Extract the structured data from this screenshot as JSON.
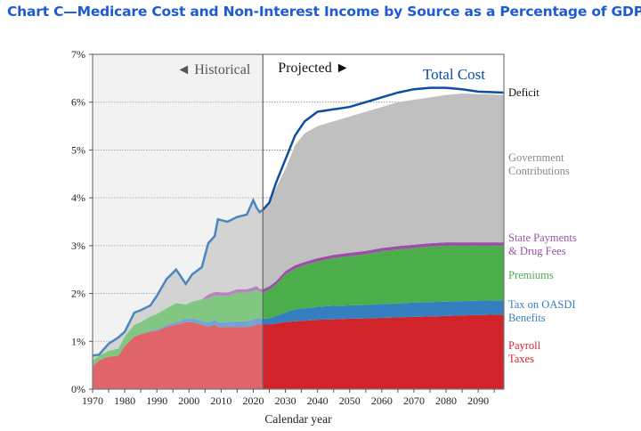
{
  "title": "Chart C—Medicare Cost and Non-Interest Income by Source as a Percentage of GDP",
  "chart_data": {
    "type": "area",
    "title": "Chart C—Medicare Cost and Non-Interest Income by Source as a Percentage of GDP",
    "xlabel": "Calendar year",
    "ylabel": "",
    "xlim": [
      1970,
      2098
    ],
    "ylim": [
      0,
      7
    ],
    "x_ticks": [
      "1970",
      "1980",
      "1990",
      "2000",
      "2010",
      "2020",
      "2030",
      "2040",
      "2050",
      "2060",
      "2070",
      "2080",
      "2090"
    ],
    "y_ticks": [
      "0%",
      "1%",
      "2%",
      "3%",
      "4%",
      "5%",
      "6%",
      "7%"
    ],
    "grid": "horizontal dotted",
    "historical_label": "◄ Historical",
    "projected_label": "Projected ►",
    "projection_start_year": 2023,
    "x": [
      1970,
      1972,
      1975,
      1978,
      1980,
      1983,
      1985,
      1988,
      1990,
      1993,
      1996,
      1999,
      2001,
      2004,
      2006,
      2008,
      2009,
      2012,
      2015,
      2018,
      2020,
      2021,
      2022,
      2023,
      2025,
      2027,
      2030,
      2033,
      2036,
      2040,
      2045,
      2050,
      2055,
      2060,
      2065,
      2070,
      2075,
      2080,
      2085,
      2090,
      2098
    ],
    "stacked_series": [
      {
        "name": "Payroll Taxes",
        "label": "Payroll\nTaxes",
        "color": "#d1232a",
        "values": [
          0.48,
          0.6,
          0.68,
          0.7,
          0.9,
          1.1,
          1.15,
          1.2,
          1.22,
          1.3,
          1.35,
          1.4,
          1.4,
          1.35,
          1.3,
          1.35,
          1.3,
          1.3,
          1.3,
          1.3,
          1.32,
          1.35,
          1.35,
          1.35,
          1.35,
          1.37,
          1.4,
          1.42,
          1.43,
          1.45,
          1.46,
          1.47,
          1.48,
          1.49,
          1.5,
          1.51,
          1.52,
          1.53,
          1.54,
          1.55,
          1.56
        ]
      },
      {
        "name": "Tax on OASDI Benefits",
        "label": "Tax on OASDI\nBenefits",
        "color": "#357fc0",
        "values": [
          0,
          0,
          0,
          0,
          0,
          0,
          0,
          0.02,
          0.03,
          0.04,
          0.05,
          0.07,
          0.08,
          0.08,
          0.1,
          0.1,
          0.1,
          0.1,
          0.12,
          0.12,
          0.13,
          0.13,
          0.13,
          0.12,
          0.13,
          0.16,
          0.2,
          0.25,
          0.26,
          0.27,
          0.28,
          0.28,
          0.28,
          0.29,
          0.29,
          0.3,
          0.3,
          0.3,
          0.3,
          0.3,
          0.3
        ]
      },
      {
        "name": "Premiums",
        "label": "Premiums",
        "color": "#4bae4b",
        "values": [
          0.12,
          0.1,
          0.12,
          0.15,
          0.2,
          0.25,
          0.25,
          0.3,
          0.32,
          0.35,
          0.4,
          0.3,
          0.35,
          0.45,
          0.5,
          0.5,
          0.55,
          0.55,
          0.6,
          0.6,
          0.6,
          0.6,
          0.55,
          0.55,
          0.6,
          0.65,
          0.8,
          0.85,
          0.9,
          0.95,
          1.0,
          1.03,
          1.06,
          1.1,
          1.13,
          1.14,
          1.16,
          1.17,
          1.16,
          1.15,
          1.14
        ]
      },
      {
        "name": "State Payments & Drug Fees",
        "label": "State Payments\n& Drug Fees",
        "color": "#9b4fa8",
        "values": [
          0,
          0,
          0,
          0,
          0,
          0,
          0,
          0,
          0,
          0,
          0,
          0,
          0,
          0,
          0.08,
          0.08,
          0.08,
          0.07,
          0.07,
          0.07,
          0.08,
          0.08,
          0.07,
          0.07,
          0.07,
          0.07,
          0.07,
          0.07,
          0.07,
          0.07,
          0.07,
          0.07,
          0.07,
          0.07,
          0.07,
          0.07,
          0.07,
          0.07,
          0.07,
          0.07,
          0.07
        ]
      },
      {
        "name": "Government Contributions",
        "label": "Government\nContributions",
        "color": "#c0c0c0",
        "values": [
          0.1,
          0.02,
          0.15,
          0.23,
          0.1,
          0.25,
          0.25,
          0.23,
          0.38,
          0.61,
          0.7,
          0.43,
          0.57,
          0.67,
          1.07,
          1.17,
          1.52,
          1.48,
          1.51,
          1.56,
          1.82,
          1.64,
          1.6,
          1.66,
          1.75,
          1.95,
          2.13,
          2.51,
          2.69,
          2.76,
          2.79,
          2.85,
          2.91,
          2.95,
          3.01,
          3.03,
          3.05,
          3.08,
          3.11,
          3.1,
          3.08
        ]
      }
    ],
    "deficit_label": "Deficit",
    "total_cost": {
      "name": "Total Cost",
      "color": "#0b4ea2",
      "historical_color": "#4a87c0",
      "values": [
        0.7,
        0.72,
        0.95,
        1.08,
        1.2,
        1.6,
        1.65,
        1.75,
        1.95,
        2.3,
        2.5,
        2.2,
        2.4,
        2.55,
        3.05,
        3.2,
        3.55,
        3.5,
        3.6,
        3.65,
        3.95,
        3.8,
        3.7,
        3.75,
        3.9,
        4.3,
        4.8,
        5.3,
        5.6,
        5.8,
        5.85,
        5.9,
        6.0,
        6.1,
        6.2,
        6.27,
        6.3,
        6.3,
        6.27,
        6.22,
        6.2
      ]
    },
    "historical_background": "#ececec"
  }
}
